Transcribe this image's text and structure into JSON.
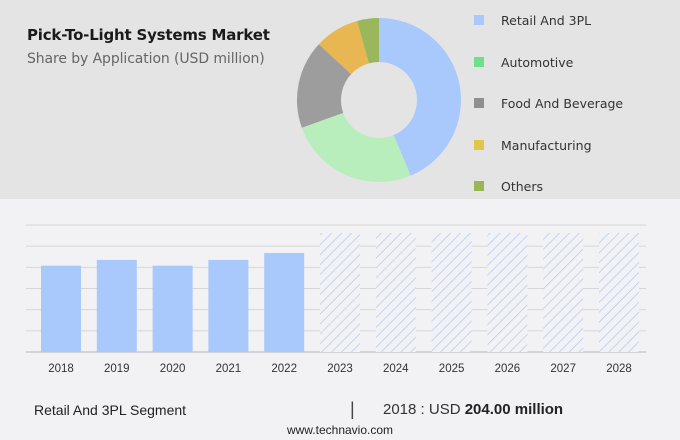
{
  "header": {
    "title": "Pick-To-Light Systems Market",
    "subtitle": "Share by Application (USD million)"
  },
  "colors": {
    "retail": "#a9c8fc",
    "automotive": "#b7eebb",
    "food": "#9d9d9d",
    "manufacturing": "#e8b752",
    "others": "#9ab85b",
    "legend_automotive": "#6ee08a",
    "legend_manufacturing": "#e3c54a",
    "legend_others": "#98b651",
    "bar": "#a9c8fc",
    "grid": "#d6d6d8"
  },
  "legend": [
    {
      "label": "Retail And 3PL",
      "color": "#a9c8fc"
    },
    {
      "label": "Automotive",
      "color": "#6ee08a"
    },
    {
      "label": "Food And Beverage",
      "color": "#8f8f8f"
    },
    {
      "label": "Manufacturing",
      "color": "#e3c54a"
    },
    {
      "label": "Others",
      "color": "#98b651"
    }
  ],
  "footer": {
    "segment": "Retail And 3PL Segment",
    "divider": "|",
    "year_prefix": "2018 : USD ",
    "value": "204.00 million",
    "url": "www.technavio.com"
  },
  "chart_data": [
    {
      "type": "pie",
      "title": "Pick-To-Light Systems Market",
      "subtitle": "Share by Application (USD million)",
      "donut": true,
      "categories": [
        "Retail And 3PL",
        "Automotive",
        "Food And Beverage",
        "Manufacturing",
        "Others"
      ],
      "values": [
        43.7,
        25.8,
        17.4,
        8.8,
        4.3
      ],
      "colors": [
        "#a9c8fc",
        "#b7eebb",
        "#9d9d9d",
        "#e8b752",
        "#9ab85b"
      ],
      "legend_position": "right"
    },
    {
      "type": "bar",
      "title": "Retail And 3PL Segment",
      "categories": [
        "2018",
        "2019",
        "2020",
        "2021",
        "2022",
        "2023",
        "2024",
        "2025",
        "2026",
        "2027",
        "2028"
      ],
      "values": [
        204.0,
        217.5,
        204.0,
        217.5,
        234.0,
        null,
        null,
        null,
        null,
        null,
        null
      ],
      "forecast_years": [
        "2023",
        "2024",
        "2025",
        "2026",
        "2027",
        "2028"
      ],
      "forecast_style": "hatched, values hidden",
      "xlabel": "",
      "ylabel": "",
      "ylim": [
        0,
        300
      ],
      "grid": true,
      "annotation": "2018 : USD 204.00 million"
    }
  ]
}
